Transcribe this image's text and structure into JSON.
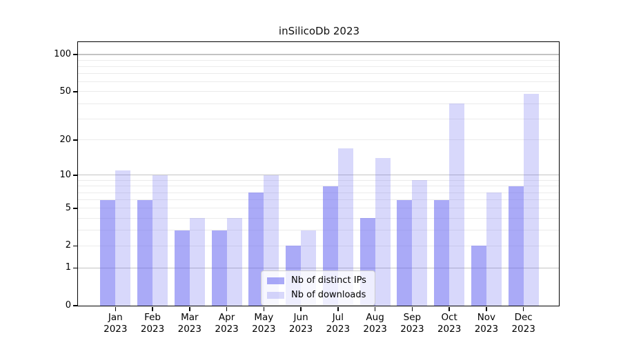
{
  "chart_data": {
    "type": "bar",
    "title": "inSilicoDb 2023",
    "categories": [
      "Jan",
      "Feb",
      "Mar",
      "Apr",
      "May",
      "Jun",
      "Jul",
      "Aug",
      "Sep",
      "Oct",
      "Nov",
      "Dec"
    ],
    "year": "2023",
    "series": [
      {
        "name": "Nb of distinct IPs",
        "color": "rgba(100,100,240,0.55)",
        "values": [
          6,
          6,
          3,
          3,
          7,
          2,
          8,
          4,
          6,
          6,
          2,
          8
        ]
      },
      {
        "name": "Nb of downloads",
        "color": "rgba(100,100,240,0.25)",
        "values": [
          11,
          10,
          4,
          4,
          10,
          3,
          17,
          14,
          9,
          40,
          7,
          48
        ]
      }
    ],
    "y_scale": "symlog",
    "y_ticks": [
      0,
      1,
      2,
      5,
      10,
      20,
      50,
      100
    ],
    "ylim": [
      0,
      126
    ],
    "xlabel": "",
    "ylabel": "",
    "grid": "both",
    "legend_position": "lower center",
    "colors": {
      "grid_major": "#c3c3c3",
      "grid_minor": "#ebebeb",
      "axis": "#000000",
      "legend_border": "#cccccc",
      "legend_background": "rgba(255,255,255,0.8)"
    }
  }
}
